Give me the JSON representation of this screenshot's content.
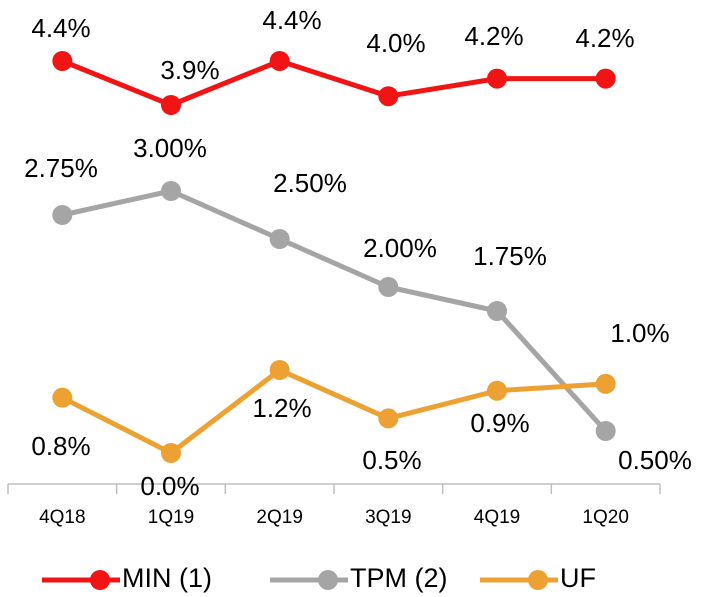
{
  "chart_data": {
    "type": "line",
    "categories": [
      "4Q18",
      "1Q19",
      "2Q19",
      "3Q19",
      "4Q19",
      "1Q20"
    ],
    "series": [
      {
        "name": "MIN (1)",
        "color": "#f01414",
        "values": [
          4.4,
          3.9,
          4.4,
          4.0,
          4.2,
          4.2
        ],
        "value_labels": [
          "4.4%",
          "3.9%",
          "4.4%",
          "4.0%",
          "4.2%",
          "4.2%"
        ]
      },
      {
        "name": "TPM (2)",
        "color": "#a5a5a5",
        "values": [
          2.75,
          3.0,
          2.5,
          2.0,
          1.75,
          0.5
        ],
        "value_labels": [
          "2.75%",
          "3.00%",
          "2.50%",
          "2.00%",
          "1.75%",
          "0.50%"
        ]
      },
      {
        "name": "UF",
        "color": "#eda132",
        "values": [
          0.8,
          0.0,
          1.2,
          0.5,
          0.9,
          1.0
        ],
        "value_labels": [
          "0.8%",
          "0.0%",
          "1.2%",
          "0.5%",
          "0.9%",
          "1.0%"
        ]
      }
    ],
    "legend": "bottom"
  }
}
